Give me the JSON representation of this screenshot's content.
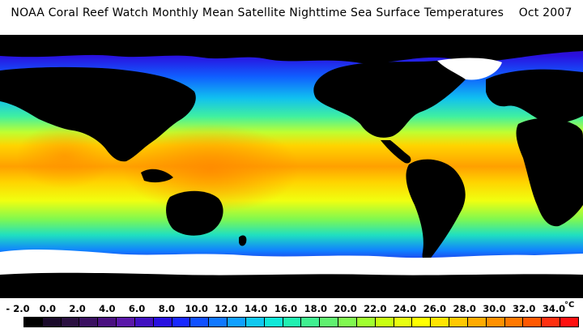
{
  "title": "NOAA Coral Reef Watch Monthly Mean Satellite Nighttime Sea Surface Temperatures    Oct 2007",
  "colors": {
    "land": "#000000",
    "sea_ice": "#ffffff",
    "ocean_gradient_stops": [
      "#3a0a8a",
      "#2a10e0",
      "#1060ff",
      "#10c0f0",
      "#40f0a0",
      "#a0ff40",
      "#f0ff10",
      "#ffd400",
      "#ffa000",
      "#ff7010"
    ]
  },
  "legend": {
    "unit": "°C",
    "ticks": [
      "- 2.0",
      "0.0",
      "2.0",
      "4.0",
      "6.0",
      "8.0",
      "10.0",
      "12.0",
      "14.0",
      "16.0",
      "18.0",
      "20.0",
      "22.0",
      "24.0",
      "26.0",
      "28.0",
      "30.0",
      "32.0",
      "34.0"
    ],
    "swatches": [
      "#000000",
      "#1a0a2a",
      "#2a1040",
      "#3a1060",
      "#4a1080",
      "#5a18a8",
      "#4010c0",
      "#2810e0",
      "#1828ff",
      "#1050ff",
      "#1078ff",
      "#10a0ff",
      "#10c8f0",
      "#10e8d8",
      "#20f0b0",
      "#40f090",
      "#60f070",
      "#80f850",
      "#a0ff30",
      "#c8ff10",
      "#e8ff10",
      "#ffff00",
      "#ffe400",
      "#ffc800",
      "#ffaa00",
      "#ff9000",
      "#ff7800",
      "#ff5800",
      "#ff3010",
      "#ff1010"
    ]
  }
}
